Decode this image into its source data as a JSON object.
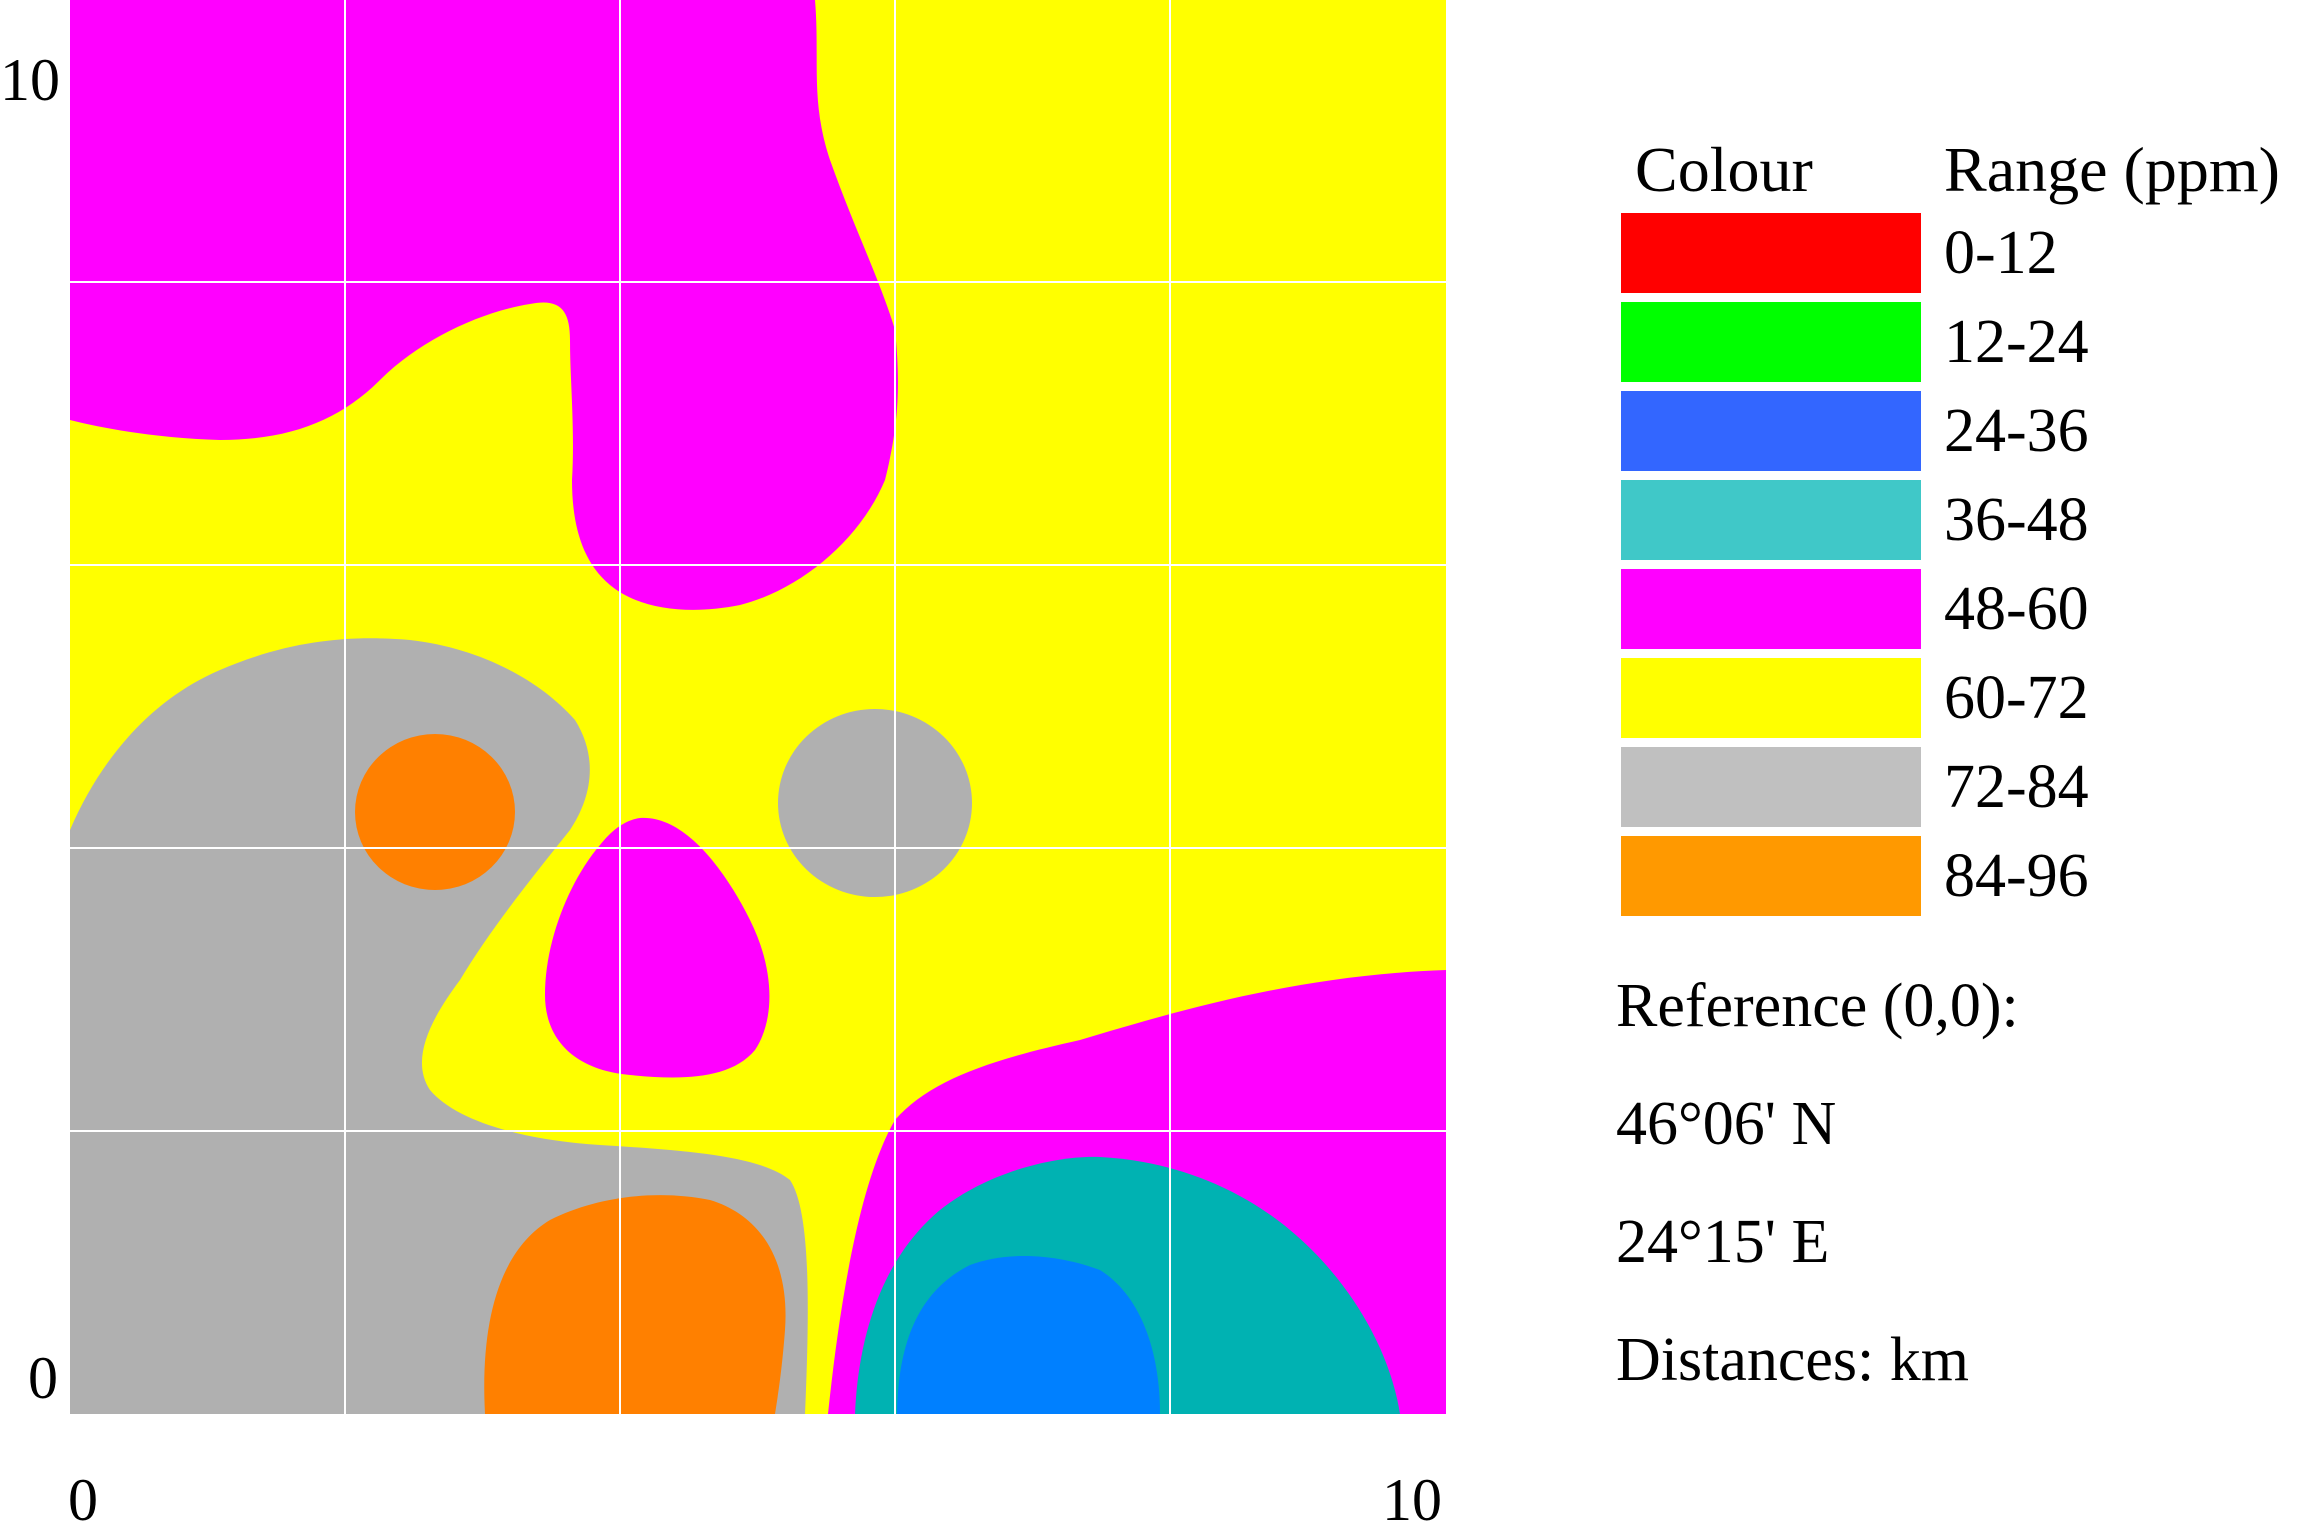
{
  "map": {
    "axes": {
      "y_top_label": "10",
      "y_bottom_label": "0",
      "x_left_label": "0",
      "x_right_label": "10"
    },
    "zone_colors": {
      "magenta": "#FF00FF",
      "yellow": "#FFFF00",
      "gray": "#B0B0B0",
      "orange": "#FF8000",
      "teal": "#00B2B2",
      "blue": "#0080FF"
    }
  },
  "legend": {
    "colour_header": "Colour",
    "range_header": "Range (ppm)",
    "items": [
      {
        "range": "0-12",
        "color": "#FF0000"
      },
      {
        "range": "12-24",
        "color": "#00FF00"
      },
      {
        "range": "24-36",
        "color": "#3366FF"
      },
      {
        "range": "36-48",
        "color": "#40C8C8"
      },
      {
        "range": "48-60",
        "color": "#FF00FF"
      },
      {
        "range": "60-72",
        "color": "#FFFF00"
      },
      {
        "range": "72-84",
        "color": "#C0C0C0"
      },
      {
        "range": "84-96",
        "color": "#FF9900"
      }
    ]
  },
  "reference": {
    "line1": "Reference (0,0):",
    "line2": "46°06' N",
    "line3": "24°15' E",
    "line4": "Distances: km"
  }
}
